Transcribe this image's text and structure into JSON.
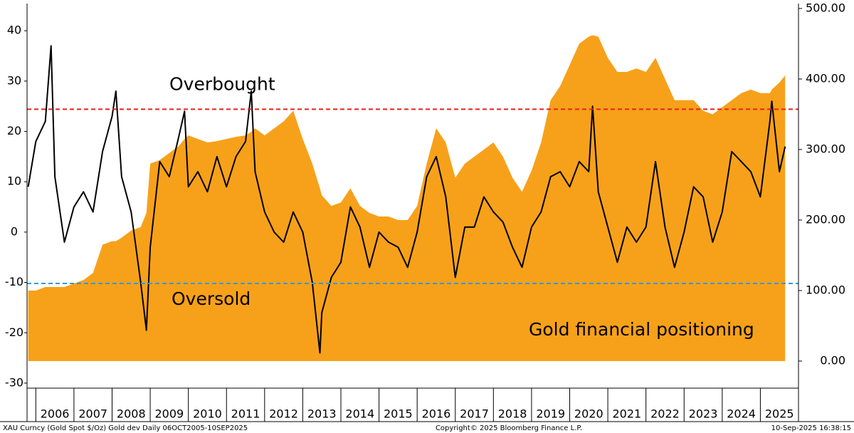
{
  "chart_data": {
    "type": "area-line",
    "x": [
      2005.8,
      2006,
      2006.25,
      2006.4,
      2006.5,
      2006.75,
      2007,
      2007.25,
      2007.5,
      2007.75,
      2008,
      2008.1,
      2008.25,
      2008.5,
      2008.75,
      2008.9,
      2009,
      2009.25,
      2009.5,
      2009.75,
      2009.9,
      2010,
      2010.25,
      2010.5,
      2010.75,
      2011,
      2011.25,
      2011.5,
      2011.65,
      2011.75,
      2012,
      2012.25,
      2012.5,
      2012.75,
      2013,
      2013.25,
      2013.45,
      2013.5,
      2013.75,
      2014,
      2014.25,
      2014.5,
      2014.75,
      2015,
      2015.25,
      2015.5,
      2015.75,
      2016,
      2016.25,
      2016.5,
      2016.75,
      2017,
      2017.25,
      2017.5,
      2017.75,
      2018,
      2018.25,
      2018.5,
      2018.75,
      2019,
      2019.25,
      2019.5,
      2019.75,
      2020,
      2020.25,
      2020.5,
      2020.6,
      2020.75,
      2021,
      2021.25,
      2021.5,
      2021.75,
      2022,
      2022.25,
      2022.5,
      2022.75,
      2023,
      2023.25,
      2023.5,
      2023.75,
      2024,
      2024.25,
      2024.5,
      2024.75,
      2025,
      2025.25,
      2025.3,
      2025.5,
      2025.65
    ],
    "series": [
      {
        "name": "Gold financial positioning",
        "color": "#f7a11a",
        "axis": "y2",
        "kind": "area",
        "values": [
          100,
          100,
          105,
          105,
          105,
          105,
          110,
          115,
          125,
          165,
          170,
          170,
          175,
          185,
          190,
          210,
          280,
          285,
          295,
          305,
          315,
          320,
          315,
          310,
          312,
          315,
          318,
          320,
          325,
          330,
          320,
          330,
          340,
          355,
          315,
          280,
          245,
          235,
          220,
          225,
          245,
          220,
          210,
          205,
          205,
          200,
          200,
          220,
          280,
          330,
          310,
          260,
          280,
          290,
          300,
          310,
          290,
          260,
          240,
          270,
          310,
          370,
          390,
          420,
          450,
          460,
          462,
          460,
          430,
          410,
          410,
          415,
          410,
          430,
          400,
          370,
          370,
          370,
          355,
          350,
          360,
          370,
          380,
          385,
          380,
          380,
          385,
          395,
          405
        ]
      },
      {
        "color": "#000000",
        "kind": "line",
        "values": [
          9,
          18,
          22,
          37,
          11,
          -2,
          5,
          8,
          4,
          16,
          23,
          28,
          11,
          4,
          -10,
          -19.5,
          -3,
          14,
          11,
          19,
          24,
          9,
          12,
          8,
          15,
          9,
          15,
          18,
          28,
          12,
          4,
          0,
          -2,
          4,
          0,
          -10,
          -24,
          -16,
          -9,
          -6,
          5,
          1,
          -7,
          0,
          -2,
          -3,
          -7,
          0,
          11,
          15,
          7,
          -9,
          1,
          1,
          7,
          4,
          2,
          -3,
          -7,
          1,
          4,
          11,
          12,
          9,
          14,
          12,
          25,
          8,
          1,
          -6,
          1,
          -2,
          1,
          14,
          1,
          -7,
          0,
          9,
          7,
          -2,
          4,
          16,
          14,
          12,
          7,
          22,
          26,
          12,
          17
        ]
      }
    ],
    "xlim": [
      2005.77,
      2026.0
    ],
    "xticks": [
      {
        "value": 2006.5,
        "label": "2006"
      },
      {
        "value": 2007.5,
        "label": "2007"
      },
      {
        "value": 2008.5,
        "label": "2008"
      },
      {
        "value": 2009.5,
        "label": "2009"
      },
      {
        "value": 2010.5,
        "label": "2010"
      },
      {
        "value": 2011.5,
        "label": "2011"
      },
      {
        "value": 2012.5,
        "label": "2012"
      },
      {
        "value": 2013.5,
        "label": "2013"
      },
      {
        "value": 2014.5,
        "label": "2014"
      },
      {
        "value": 2015.5,
        "label": "2015"
      },
      {
        "value": 2016.5,
        "label": "2016"
      },
      {
        "value": 2017.5,
        "label": "2017"
      },
      {
        "value": 2018.5,
        "label": "2018"
      },
      {
        "value": 2019.5,
        "label": "2019"
      },
      {
        "value": 2020.5,
        "label": "2020"
      },
      {
        "value": 2021.5,
        "label": "2021"
      },
      {
        "value": 2022.5,
        "label": "2022"
      },
      {
        "value": 2023.5,
        "label": "2023"
      },
      {
        "value": 2024.5,
        "label": "2024"
      },
      {
        "value": 2025.5,
        "label": "2025"
      }
    ],
    "ylim": [
      -31,
      45.4
    ],
    "yticks": [
      -30,
      -20,
      -10,
      0,
      10,
      20,
      30,
      40
    ],
    "y2lim": [
      -38.4,
      507
    ],
    "y2ticks": [
      {
        "value": 0,
        "label": "0.00"
      },
      {
        "value": 100,
        "label": "100.00"
      },
      {
        "value": 200,
        "label": "200.00"
      },
      {
        "value": 300,
        "label": "300.00"
      },
      {
        "value": 400,
        "label": "400.00"
      },
      {
        "value": 500,
        "label": "500.00"
      }
    ],
    "reference_lines": [
      {
        "value": 24.4,
        "color": "#e8211c",
        "label": "Overbought"
      },
      {
        "value": -10.2,
        "color": "#2e9be0",
        "label": "Oversold"
      }
    ]
  },
  "footer": {
    "left": "XAU Curncy (Gold Spot  $/Oz) Gold dev  Daily 06OCT2005-10SEP2025",
    "center": "Copyright© 2025 Bloomberg Finance L.P.",
    "right": "10-Sep-2025 16:38:15"
  }
}
